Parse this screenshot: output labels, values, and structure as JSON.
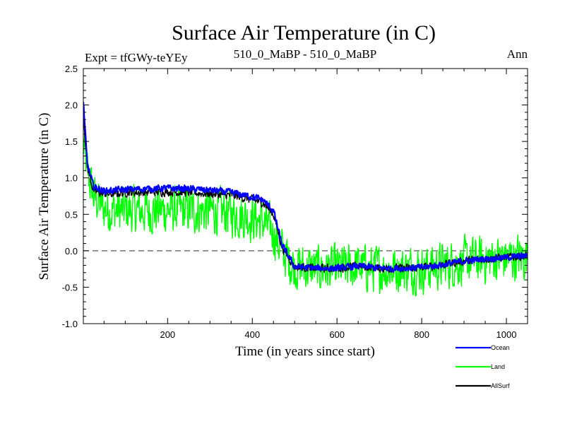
{
  "chart_data": {
    "type": "line",
    "title": "Surface Air Temperature (in C)",
    "subtitle_left": "Expt = tfGWy-teYEy",
    "subtitle_center": "510_0_MaBP - 510_0_MaBP",
    "subtitle_right": "Ann",
    "xlabel": "Time (in years since start)",
    "ylabel": "Surface Air Temperature (in C)",
    "xlim": [
      1,
      1050
    ],
    "ylim": [
      -1.0,
      2.5
    ],
    "x_ticks": [
      200,
      400,
      600,
      800,
      1000
    ],
    "x_tick_labels": [
      "200",
      "400",
      "600",
      "800",
      "1000"
    ],
    "y_ticks": [
      -1.0,
      -0.5,
      0.0,
      0.5,
      1.0,
      1.5,
      2.0,
      2.5
    ],
    "y_tick_labels": [
      "-1.0",
      "-0.5",
      "0.0",
      "0.5",
      "1.0",
      "1.5",
      "2.0",
      "2.5"
    ],
    "reference_line": {
      "y": 0.0,
      "style": "dashed"
    },
    "grid": false,
    "legend_position": "bottom-right",
    "series": [
      {
        "name": "Land",
        "color": "#00ff00",
        "x": [
          1,
          10,
          25,
          50,
          75,
          100,
          150,
          200,
          250,
          300,
          350,
          400,
          425,
          450,
          470,
          500,
          550,
          600,
          650,
          700,
          750,
          800,
          850,
          900,
          950,
          1000,
          1050
        ],
        "values": [
          1.45,
          1.1,
          0.75,
          0.58,
          0.55,
          0.55,
          0.55,
          0.56,
          0.55,
          0.55,
          0.52,
          0.45,
          0.4,
          0.25,
          0.0,
          -0.22,
          -0.25,
          -0.25,
          -0.22,
          -0.25,
          -0.25,
          -0.25,
          -0.2,
          -0.15,
          -0.12,
          -0.1,
          -0.08
        ],
        "noise_amplitude": 0.28
      },
      {
        "name": "AllSurf",
        "color": "#000000",
        "x": [
          1,
          10,
          25,
          50,
          75,
          100,
          150,
          200,
          250,
          300,
          350,
          400,
          425,
          450,
          470,
          500,
          550,
          600,
          650,
          700,
          750,
          800,
          850,
          900,
          950,
          1000,
          1050
        ],
        "values": [
          1.9,
          1.15,
          0.82,
          0.78,
          0.78,
          0.8,
          0.8,
          0.81,
          0.8,
          0.78,
          0.76,
          0.7,
          0.66,
          0.5,
          0.05,
          -0.22,
          -0.24,
          -0.24,
          -0.21,
          -0.24,
          -0.24,
          -0.23,
          -0.19,
          -0.14,
          -0.11,
          -0.09,
          -0.07
        ],
        "noise_amplitude": 0.05
      },
      {
        "name": "Ocean",
        "color": "#0000ff",
        "x": [
          1,
          10,
          25,
          50,
          75,
          100,
          150,
          200,
          250,
          300,
          350,
          400,
          425,
          450,
          470,
          500,
          550,
          600,
          650,
          700,
          750,
          800,
          850,
          900,
          950,
          1000,
          1050
        ],
        "values": [
          2.05,
          1.2,
          0.88,
          0.82,
          0.83,
          0.84,
          0.85,
          0.86,
          0.85,
          0.83,
          0.8,
          0.74,
          0.7,
          0.55,
          0.08,
          -0.22,
          -0.24,
          -0.24,
          -0.21,
          -0.24,
          -0.24,
          -0.23,
          -0.19,
          -0.14,
          -0.11,
          -0.09,
          -0.07
        ],
        "noise_amplitude": 0.04
      }
    ],
    "legend": [
      {
        "name": "Ocean",
        "color": "#0000ff"
      },
      {
        "name": "Land",
        "color": "#00ff00"
      },
      {
        "name": "AllSurf",
        "color": "#000000"
      }
    ]
  }
}
